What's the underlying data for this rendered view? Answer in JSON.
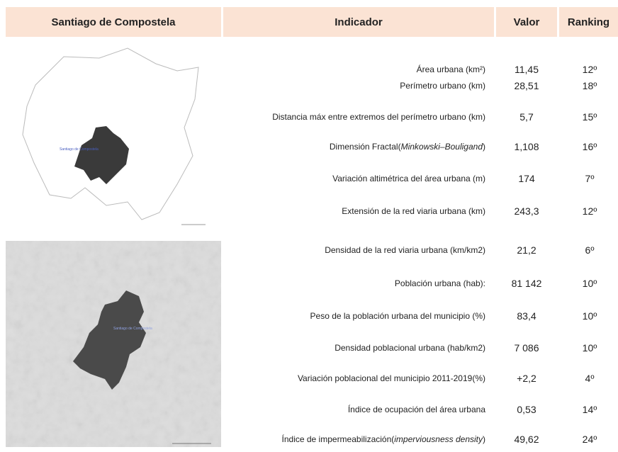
{
  "header": {
    "col_place": "Santiago de Compostela",
    "col_indicator": "Indicador",
    "col_value": "Valor",
    "col_ranking": "Ranking"
  },
  "map_label": "Santiago de Compostela",
  "rows": [
    {
      "indicator": "Área urbana (km²)",
      "value": "11,45",
      "ranking": "12º"
    },
    {
      "indicator": "Perímetro urbano (km)",
      "value": "28,51",
      "ranking": "18º"
    },
    {
      "indicator": "Distancia máx entre extremos del perímetro urbano (km)",
      "value": "5,7",
      "ranking": "15º"
    },
    {
      "indicator": "Dimensión Fractal(",
      "indicator_italic": "Minkowski–Bouligand",
      "indicator_end": ")",
      "value": "1,108",
      "ranking": "16º"
    },
    {
      "indicator": "Variación altimétrica del área urbana (m)",
      "value": "174",
      "ranking": "7º"
    },
    {
      "indicator": "Extensión de la red viaria urbana (km)",
      "value": "243,3",
      "ranking": "12º"
    },
    {
      "indicator": "Densidad de la red viaria urbana (km/km2)",
      "value": "21,2",
      "ranking": "6º"
    },
    {
      "indicator": "Población urbana (hab):",
      "value": "81 142",
      "ranking": "10º"
    },
    {
      "indicator": "Peso de la población urbana del municipio (%)",
      "value": "83,4",
      "ranking": "10º"
    },
    {
      "indicator": "Densidad poblacional urbana (hab/km2)",
      "value": "7 086",
      "ranking": "10º"
    },
    {
      "indicator": "Variación poblacional del municipio 2011-2019(%)",
      "value": "+2,2",
      "ranking": "4º"
    },
    {
      "indicator": "Índice de ocupación del área urbana",
      "value": "0,53",
      "ranking": "14º"
    },
    {
      "indicator": "Índice de impermeabilización(",
      "indicator_italic": "imperviousness density",
      "indicator_end": ")",
      "value": "49,62",
      "ranking": "24º"
    }
  ]
}
